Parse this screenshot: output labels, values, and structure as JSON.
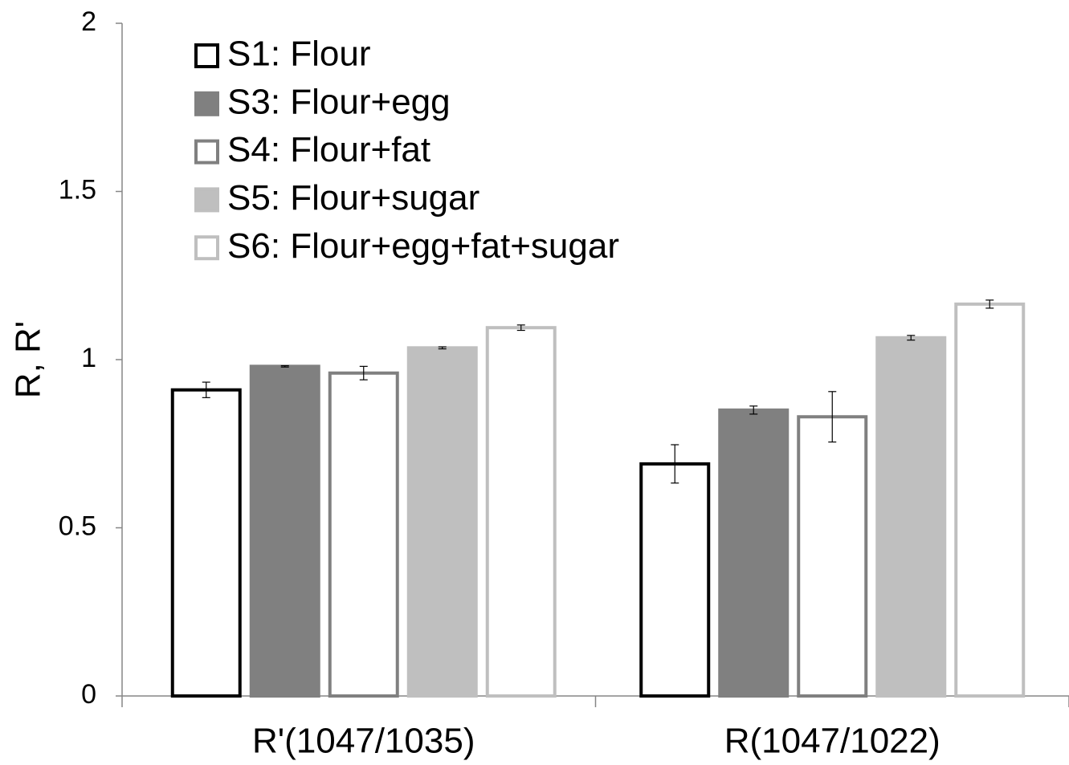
{
  "chart_data": {
    "type": "bar",
    "y_label": "R, R'",
    "categories": [
      "R'(1047/1035)",
      "R(1047/1022)"
    ],
    "series": [
      {
        "name": "S1: Flour",
        "color": "#000000",
        "fill": "#ffffff",
        "values": [
          0.91,
          0.69
        ],
        "errors": [
          0.023,
          0.057
        ]
      },
      {
        "name": "S3: Flour+egg",
        "color": "#808080",
        "fill": "#808080",
        "values": [
          0.98,
          0.85
        ],
        "errors": [
          0.002,
          0.012
        ]
      },
      {
        "name": "S4: Flour+fat",
        "color": "#808080",
        "fill": "#ffffff",
        "values": [
          0.96,
          0.83
        ],
        "errors": [
          0.02,
          0.075
        ]
      },
      {
        "name": "S5: Flour+sugar",
        "color": "#bfbfbf",
        "fill": "#bfbfbf",
        "values": [
          1.035,
          1.065
        ],
        "errors": [
          0.003,
          0.007
        ]
      },
      {
        "name": "S6: Flour+egg+fat+sugar",
        "color": "#bfbfbf",
        "fill": "#ffffff",
        "values": [
          1.095,
          1.165
        ],
        "errors": [
          0.008,
          0.012
        ]
      }
    ],
    "ylim": [
      0,
      2
    ],
    "yticks": [
      0,
      0.5,
      1,
      1.5,
      2
    ],
    "grid": false
  }
}
